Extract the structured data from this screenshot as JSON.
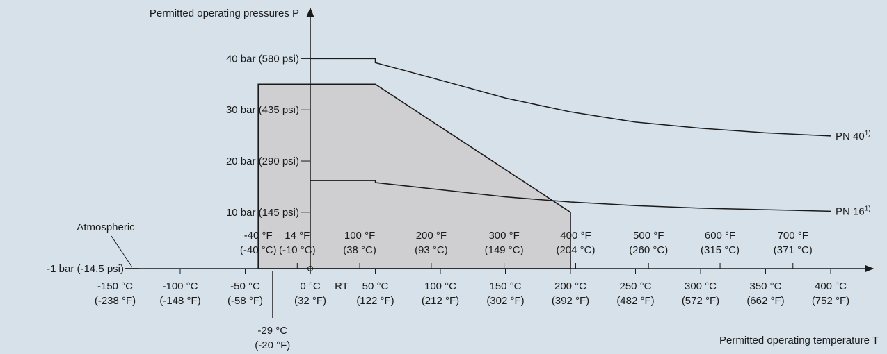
{
  "chart_data": {
    "type": "line",
    "title": "",
    "xlabel": "Permitted operating temperature T",
    "ylabel": "Permitted operating pressures P",
    "x_unit": "°C",
    "y_unit": "bar",
    "xlim": [
      -175,
      425
    ],
    "ylim": [
      -1.5,
      52
    ],
    "x_ticks": [
      {
        "value": -150,
        "label": "-150 °C",
        "sublabel": "(-238 °F)"
      },
      {
        "value": -100,
        "label": "-100 °C",
        "sublabel": "(-148 °F)"
      },
      {
        "value": -50,
        "label": "-50 °C",
        "sublabel": "(-58 °F)"
      },
      {
        "value": 0,
        "label": "0 °C",
        "sublabel": "(32 °F)"
      },
      {
        "value": 50,
        "label": "50 °C",
        "sublabel": "(122 °F)"
      },
      {
        "value": 100,
        "label": "100 °C",
        "sublabel": "(212 °F)"
      },
      {
        "value": 150,
        "label": "150 °C",
        "sublabel": "(302 °F)"
      },
      {
        "value": 200,
        "label": "200 °C",
        "sublabel": "(392 °F)"
      },
      {
        "value": 250,
        "label": "250 °C",
        "sublabel": "(482 °F)"
      },
      {
        "value": 300,
        "label": "300 °C",
        "sublabel": "(572 °F)"
      },
      {
        "value": 350,
        "label": "350 °C",
        "sublabel": "(662 °F)"
      },
      {
        "value": 400,
        "label": "400 °C",
        "sublabel": "(752 °F)"
      }
    ],
    "upper_x_ticks": [
      {
        "value": -40,
        "label": "-40 °F",
        "sublabel": "(-40 °C)"
      },
      {
        "value": -10,
        "label": "14 °F",
        "sublabel": "(-10 °C)"
      },
      {
        "value": 38,
        "label": "100 °F",
        "sublabel": "(38 °C)"
      },
      {
        "value": 93,
        "label": "200 °F",
        "sublabel": "(93 °C)"
      },
      {
        "value": 149,
        "label": "300 °F",
        "sublabel": "(149 °C)"
      },
      {
        "value": 204,
        "label": "400 °F",
        "sublabel": "(204 °C)"
      },
      {
        "value": 260,
        "label": "500 °F",
        "sublabel": "(260 °C)"
      },
      {
        "value": 315,
        "label": "600 °F",
        "sublabel": "(315 °C)"
      },
      {
        "value": 371,
        "label": "700 °F",
        "sublabel": "(371 °C)"
      }
    ],
    "y_ticks": [
      {
        "value": 10,
        "label": "10 bar (145 psi)"
      },
      {
        "value": 20,
        "label": "20 bar (290 psi)"
      },
      {
        "value": 30,
        "label": "30 bar (435 psi)"
      },
      {
        "value": 40,
        "label": "40 bar (580 psi)"
      }
    ],
    "baseline": {
      "value": -1,
      "label": "-1 bar (-14.5 psi)"
    },
    "atmospheric_label": "Atmospheric",
    "rt_label": "RT",
    "min_temp": {
      "value": -29,
      "label": "-29 °C",
      "sublabel": "(-20 °F)"
    },
    "series": [
      {
        "name": "PN 40",
        "footnote": "1)",
        "x": [
          0,
          50,
          50,
          100,
          150,
          200,
          250,
          300,
          350,
          400
        ],
        "y": [
          40,
          40,
          39.2,
          35.8,
          32.3,
          29.6,
          27.6,
          26.4,
          25.5,
          24.9
        ]
      },
      {
        "name": "PN 16",
        "footnote": "1)",
        "x": [
          0,
          50,
          50,
          100,
          150,
          200,
          250,
          300,
          350,
          400
        ],
        "y": [
          16.2,
          16.2,
          15.8,
          14.4,
          13.0,
          12.0,
          11.3,
          10.8,
          10.5,
          10.2
        ]
      }
    ],
    "shaded_region": {
      "x": [
        -40,
        50,
        200,
        200,
        -40
      ],
      "y": [
        35,
        35,
        10,
        -1,
        -1
      ]
    }
  }
}
